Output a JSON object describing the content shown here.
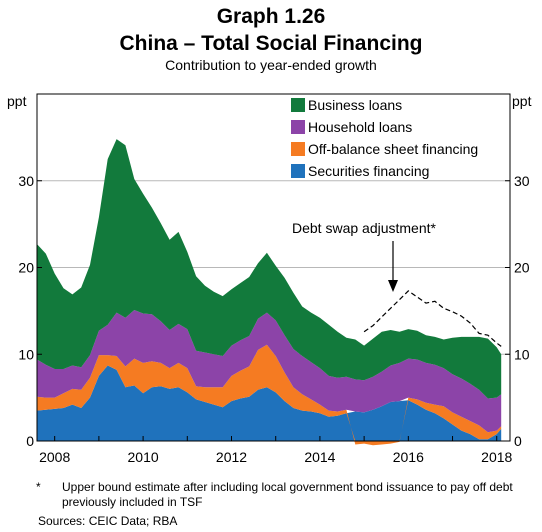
{
  "title": "Graph 1.26",
  "subtitle": "China – Total Social Financing",
  "subsubtitle": "Contribution to year-ended growth",
  "left_unit": "ppt",
  "right_unit": "ppt",
  "footnote_marker": "*",
  "footnote": "Upper bound estimate after including local government bond issuance to pay off debt previously included in TSF",
  "sources": "Sources: CEIC Data; RBA",
  "colors": {
    "business": "#127a3c",
    "household": "#8c44a8",
    "offbalance": "#f57b22",
    "securities": "#1f72bc",
    "gridline": "#b8b8b8",
    "dashed": "#000000"
  },
  "chart_data": {
    "type": "area",
    "stacked": true,
    "title": "Graph 1.26",
    "subtitle": "China – Total Social Financing",
    "ylabel": "ppt",
    "ylim": [
      0,
      40
    ],
    "xlim": [
      2007.6,
      2018.3
    ],
    "yticks": [
      0,
      10,
      20,
      30
    ],
    "xticks": [
      2008,
      2010,
      2012,
      2014,
      2016,
      2018
    ],
    "grid": "horizontal",
    "legend_position": "top-right",
    "x": [
      2007.6,
      2007.8,
      2008.0,
      2008.2,
      2008.4,
      2008.6,
      2008.8,
      2009.0,
      2009.2,
      2009.4,
      2009.6,
      2009.8,
      2010.0,
      2010.2,
      2010.4,
      2010.6,
      2010.8,
      2011.0,
      2011.2,
      2011.4,
      2011.6,
      2011.8,
      2012.0,
      2012.2,
      2012.4,
      2012.6,
      2012.8,
      2013.0,
      2013.2,
      2013.4,
      2013.6,
      2013.8,
      2014.0,
      2014.2,
      2014.4,
      2014.6,
      2014.8,
      2015.0,
      2015.2,
      2015.4,
      2015.6,
      2015.8,
      2016.0,
      2016.2,
      2016.4,
      2016.6,
      2016.8,
      2017.0,
      2017.2,
      2017.4,
      2017.6,
      2017.8,
      2018.0,
      2018.1
    ],
    "series": [
      {
        "name": "Securities financing",
        "values": [
          3.5,
          3.6,
          3.7,
          3.8,
          4.2,
          3.8,
          5.0,
          7.5,
          8.7,
          8.2,
          6.2,
          6.4,
          5.5,
          6.2,
          6.3,
          6.0,
          6.2,
          5.6,
          4.8,
          4.5,
          4.2,
          3.9,
          4.6,
          4.9,
          5.1,
          5.9,
          6.2,
          5.6,
          4.6,
          3.8,
          3.5,
          3.4,
          3.2,
          2.8,
          2.9,
          3.2,
          3.4,
          3.3,
          3.6,
          4.0,
          4.5,
          4.6,
          4.7,
          4.2,
          3.6,
          3.2,
          2.6,
          1.9,
          1.2,
          0.8,
          0.2,
          0.2,
          0.8,
          1.4
        ]
      },
      {
        "name": "Off-balance sheet financing",
        "values": [
          1.6,
          1.4,
          1.3,
          1.7,
          1.8,
          2.1,
          2.3,
          2.4,
          1.2,
          1.6,
          2.4,
          3.1,
          3.5,
          3.0,
          2.7,
          2.4,
          2.8,
          2.8,
          1.5,
          1.7,
          2.0,
          2.3,
          2.9,
          3.2,
          3.5,
          4.6,
          4.9,
          4.2,
          3.3,
          2.4,
          1.9,
          1.4,
          1.0,
          0.7,
          0.5,
          0.4,
          -0.4,
          -0.3,
          -0.5,
          -0.4,
          -0.3,
          -0.1,
          0.3,
          0.6,
          0.8,
          1.0,
          1.4,
          1.4,
          1.6,
          1.5,
          1.6,
          0.8,
          0.4,
          0.3
        ]
      },
      {
        "name": "Household loans",
        "values": [
          4.3,
          3.8,
          3.3,
          2.8,
          2.7,
          2.6,
          2.6,
          2.8,
          3.5,
          5.0,
          5.6,
          5.6,
          5.7,
          5.4,
          4.8,
          4.4,
          4.5,
          4.5,
          4.1,
          4.0,
          3.8,
          3.6,
          3.5,
          3.5,
          3.5,
          3.6,
          3.7,
          4.1,
          4.3,
          4.4,
          4.4,
          4.3,
          4.2,
          4.0,
          3.9,
          3.8,
          3.7,
          3.7,
          3.8,
          4.0,
          4.2,
          4.4,
          4.5,
          4.6,
          4.6,
          4.6,
          4.4,
          4.4,
          4.4,
          4.3,
          4.1,
          3.9,
          3.8,
          3.7
        ]
      },
      {
        "name": "Business loans",
        "values": [
          13.3,
          12.8,
          11.0,
          9.3,
          8.2,
          9.2,
          10.4,
          13.1,
          19.1,
          20.0,
          19.9,
          15.1,
          13.8,
          12.3,
          11.3,
          10.4,
          10.6,
          8.9,
          8.6,
          7.7,
          7.2,
          6.9,
          6.5,
          6.6,
          6.8,
          6.4,
          6.9,
          6.3,
          6.6,
          6.5,
          5.7,
          5.7,
          5.8,
          5.9,
          5.3,
          4.5,
          4.6,
          4.0,
          4.4,
          4.6,
          4.1,
          3.6,
          3.4,
          3.3,
          3.2,
          3.2,
          3.3,
          4.2,
          4.8,
          5.4,
          6.1,
          6.9,
          5.8,
          4.6
        ]
      }
    ],
    "dashed_series": {
      "name": "Upper bound estimate including local government bond issuance",
      "x": [
        2015.0,
        2015.2,
        2015.4,
        2015.6,
        2015.8,
        2016.0,
        2016.2,
        2016.4,
        2016.6,
        2016.8,
        2017.0,
        2017.2,
        2017.4,
        2017.6,
        2017.8,
        2018.0,
        2018.1
      ],
      "values": [
        12.6,
        13.3,
        14.3,
        15.3,
        16.3,
        17.3,
        16.6,
        15.9,
        16.1,
        15.3,
        14.9,
        14.4,
        13.6,
        12.4,
        12.2,
        11.3,
        10.9
      ]
    },
    "annotation": {
      "text": "Debt swap adjustment*",
      "x": 2016.0,
      "y": 17.3
    }
  }
}
